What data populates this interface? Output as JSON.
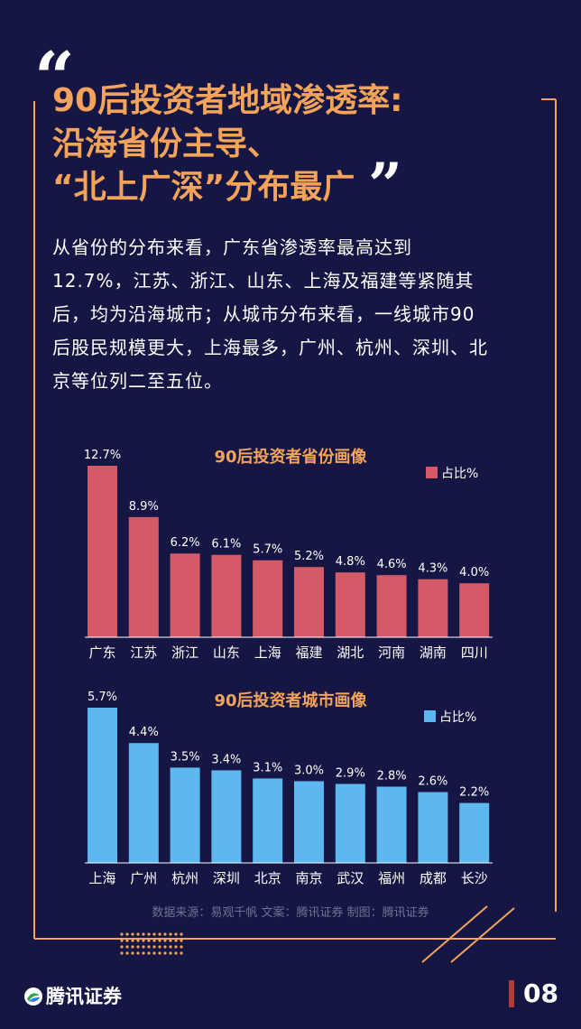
{
  "headline": {
    "line1": "90后投资者地域渗透率:",
    "line2": "沿海省份主导、",
    "line3": "“北上广深”分布最广"
  },
  "body_lines": [
    "从省份的分布来看，广东省渗透率最高达到",
    "12.7%，江苏、浙江、山东、上海及福建等紧随其",
    "后，均为沿海城市；从城市分布来看，一线城市90",
    "后股民规模更大，上海最多，广州、杭州、深圳、北",
    "京等位列二至五位。"
  ],
  "chart_data": [
    {
      "type": "bar",
      "title": "90后投资者省份画像",
      "legend": "占比%",
      "legend_position": "top-right",
      "color": "#d45a67",
      "categories": [
        "广东",
        "江苏",
        "浙江",
        "山东",
        "上海",
        "福建",
        "湖北",
        "河南",
        "湖南",
        "四川"
      ],
      "values": [
        12.7,
        8.9,
        6.2,
        6.1,
        5.7,
        5.2,
        4.8,
        4.6,
        4.3,
        4.0
      ],
      "labels": [
        "12.7%",
        "8.9%",
        "6.2%",
        "6.1%",
        "5.7%",
        "5.2%",
        "4.8%",
        "4.6%",
        "4.3%",
        "4.0%"
      ]
    },
    {
      "type": "bar",
      "title": "90后投资者城市画像",
      "legend": "占比%",
      "legend_position": "top-right",
      "color": "#5cb8ee",
      "categories": [
        "上海",
        "广州",
        "杭州",
        "深圳",
        "北京",
        "南京",
        "武汉",
        "福州",
        "成都",
        "长沙"
      ],
      "values": [
        5.7,
        4.4,
        3.5,
        3.4,
        3.1,
        3.0,
        2.9,
        2.8,
        2.6,
        2.2
      ],
      "labels": [
        "5.7%",
        "4.4%",
        "3.5%",
        "3.4%",
        "3.1%",
        "3.0%",
        "2.9%",
        "2.8%",
        "2.6%",
        "2.2%"
      ]
    }
  ],
  "source": "数据来源：易观千帆  文案：腾讯证券  制图：腾讯证券",
  "brand": "腾讯证券",
  "page_number": "08",
  "colors": {
    "accent": "#f4a45a",
    "background": "#161644",
    "frame": "#f4a45a"
  }
}
